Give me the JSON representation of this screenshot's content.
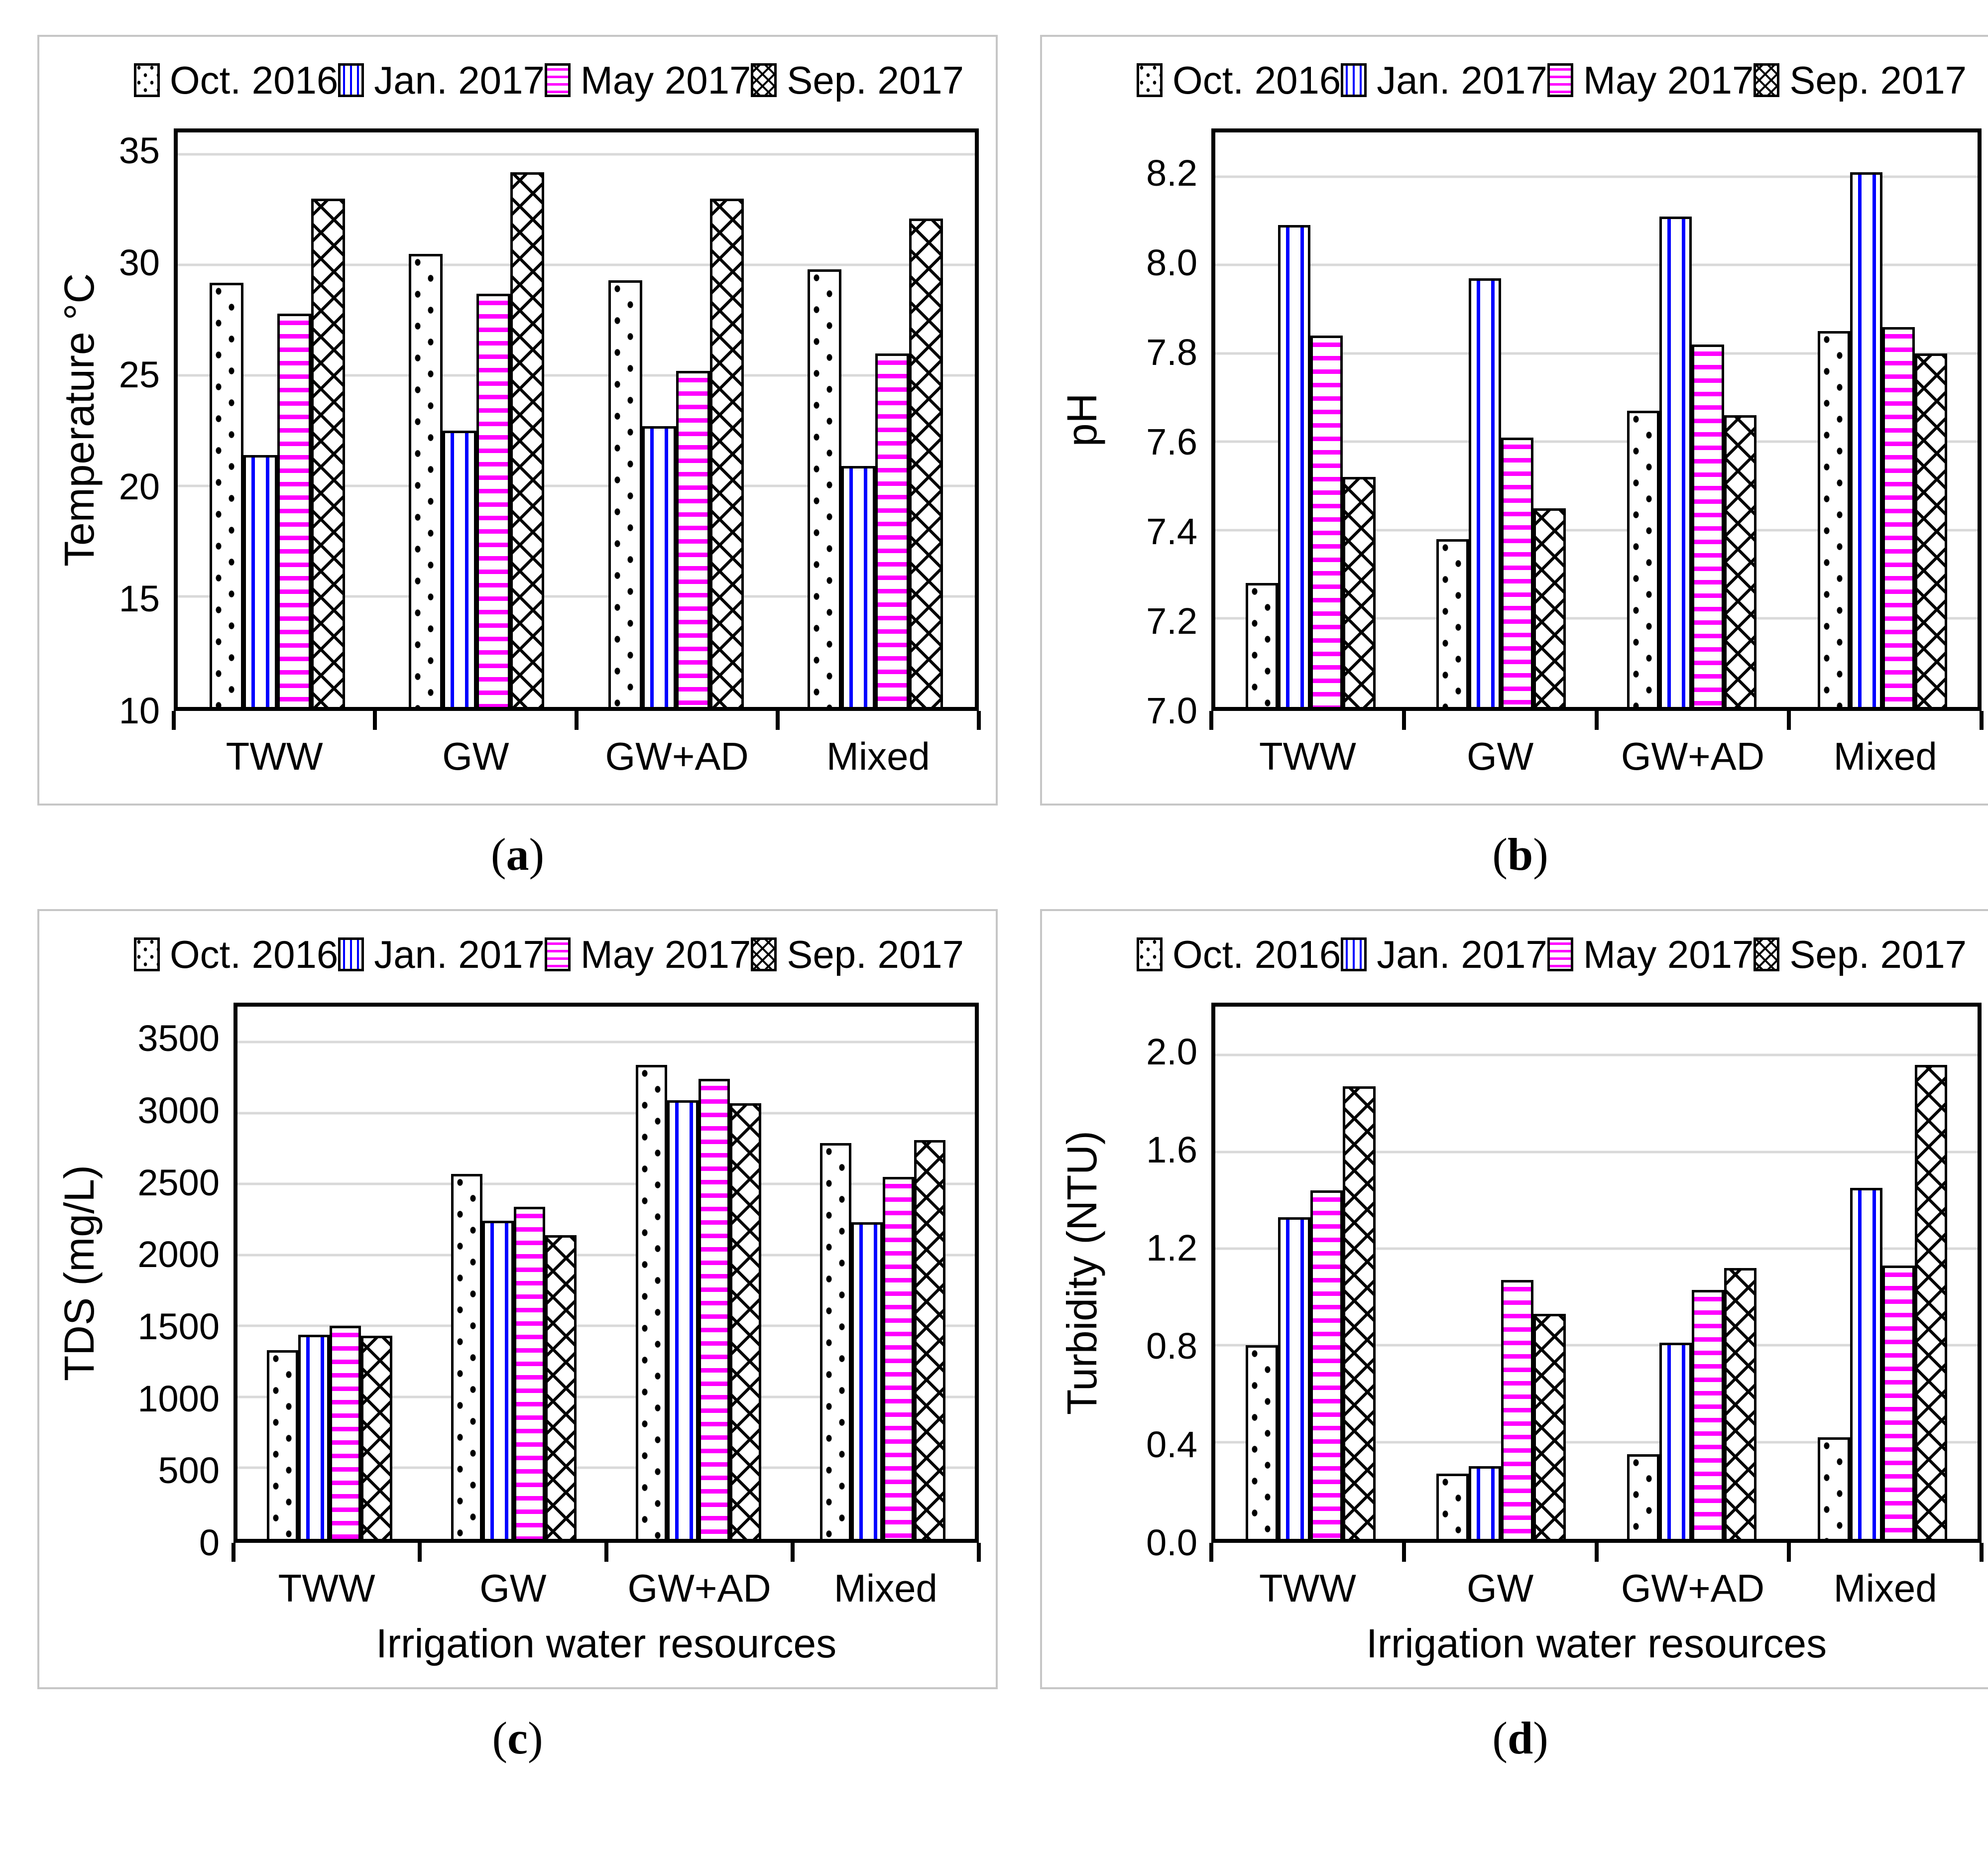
{
  "figure": {
    "colors": {
      "bar_outline": "#000000",
      "stripe_blue": "#0000FF",
      "stripe_magenta": "#FF00FF",
      "gridline": "#D9D9D9",
      "panel_frame": "#C6C6C6",
      "background": "#FFFFFF"
    },
    "panels": [
      {
        "caption_label": "(a)",
        "chart_data": {
          "type": "bar",
          "title": "",
          "xlabel": "",
          "ylabel": "Temperature °C",
          "categories": [
            "TWW",
            "GW",
            "GW+AD",
            "Mixed"
          ],
          "series": [
            {
              "name": "Oct. 2016",
              "pattern": "black-dots",
              "values": [
                29.2,
                30.5,
                29.3,
                29.8
              ]
            },
            {
              "name": "Jan. 2017",
              "pattern": "blue-vertical-stripes",
              "values": [
                21.4,
                22.5,
                22.7,
                20.9
              ]
            },
            {
              "name": "May 2017",
              "pattern": "magenta-horizontal-stripes",
              "values": [
                27.8,
                28.7,
                25.2,
                26.0
              ]
            },
            {
              "name": "Sep. 2017",
              "pattern": "black-crosshatch",
              "values": [
                33.0,
                34.2,
                33.0,
                32.1
              ]
            }
          ],
          "ylim": [
            10,
            36
          ],
          "yticks": [
            "10",
            "15",
            "20",
            "25",
            "30",
            "35"
          ],
          "grid": "horizontal",
          "legend_position": "top"
        }
      },
      {
        "caption_label": "(b)",
        "chart_data": {
          "type": "bar",
          "title": "",
          "xlabel": "",
          "ylabel": "pH",
          "categories": [
            "TWW",
            "GW",
            "GW+AD",
            "Mixed"
          ],
          "series": [
            {
              "name": "Oct. 2016",
              "pattern": "black-dots",
              "values": [
                7.28,
                7.38,
                7.67,
                7.85
              ]
            },
            {
              "name": "Jan. 2017",
              "pattern": "blue-vertical-stripes",
              "values": [
                8.09,
                7.97,
                8.11,
                8.21
              ]
            },
            {
              "name": "May 2017",
              "pattern": "magenta-horizontal-stripes",
              "values": [
                7.84,
                7.61,
                7.82,
                7.86
              ]
            },
            {
              "name": "Sep. 2017",
              "pattern": "black-crosshatch",
              "values": [
                7.52,
                7.45,
                7.66,
                7.8
              ]
            }
          ],
          "ylim": [
            7.0,
            8.3
          ],
          "yticks": [
            "7.0",
            "7.2",
            "7.4",
            "7.6",
            "7.8",
            "8.0",
            "8.2"
          ],
          "grid": "horizontal",
          "legend_position": "top"
        }
      },
      {
        "caption_label": "(c)",
        "chart_data": {
          "type": "bar",
          "title": "",
          "xlabel": "Irrigation water resources",
          "ylabel": "TDS (mg/L)",
          "categories": [
            "TWW",
            "GW",
            "GW+AD",
            "Mixed"
          ],
          "series": [
            {
              "name": "Oct. 2016",
              "pattern": "black-dots",
              "values": [
                1330,
                2570,
                3340,
                2790
              ]
            },
            {
              "name": "Jan. 2017",
              "pattern": "blue-vertical-stripes",
              "values": [
                1440,
                2240,
                3090,
                2230
              ]
            },
            {
              "name": "May 2017",
              "pattern": "magenta-horizontal-stripes",
              "values": [
                1500,
                2340,
                3240,
                2550
              ]
            },
            {
              "name": "Sep. 2017",
              "pattern": "black-crosshatch",
              "values": [
                1430,
                2140,
                3070,
                2810
              ]
            }
          ],
          "ylim": [
            0,
            3750
          ],
          "yticks": [
            "0",
            "500",
            "1000",
            "1500",
            "2000",
            "2500",
            "3000",
            "3500"
          ],
          "grid": "horizontal",
          "legend_position": "top"
        }
      },
      {
        "caption_label": "(d)",
        "chart_data": {
          "type": "bar",
          "title": "",
          "xlabel": "Irrigation water resources",
          "ylabel": "Turbidity (NTU)",
          "categories": [
            "TWW",
            "GW",
            "GW+AD",
            "Mixed"
          ],
          "series": [
            {
              "name": "Oct. 2016",
              "pattern": "black-dots",
              "values": [
                0.8,
                0.27,
                0.35,
                0.42
              ]
            },
            {
              "name": "Jan. 2017",
              "pattern": "blue-vertical-stripes",
              "values": [
                1.33,
                0.3,
                0.81,
                1.45
              ]
            },
            {
              "name": "May 2017",
              "pattern": "magenta-horizontal-stripes",
              "values": [
                1.44,
                1.07,
                1.03,
                1.13
              ]
            },
            {
              "name": "Sep. 2017",
              "pattern": "black-crosshatch",
              "values": [
                1.87,
                0.93,
                1.12,
                1.96
              ]
            }
          ],
          "ylim": [
            0,
            2.2
          ],
          "yticks": [
            "0.0",
            "0.4",
            "0.8",
            "1.2",
            "1.6",
            "2.0"
          ],
          "grid": "horizontal",
          "legend_position": "top"
        }
      }
    ]
  }
}
